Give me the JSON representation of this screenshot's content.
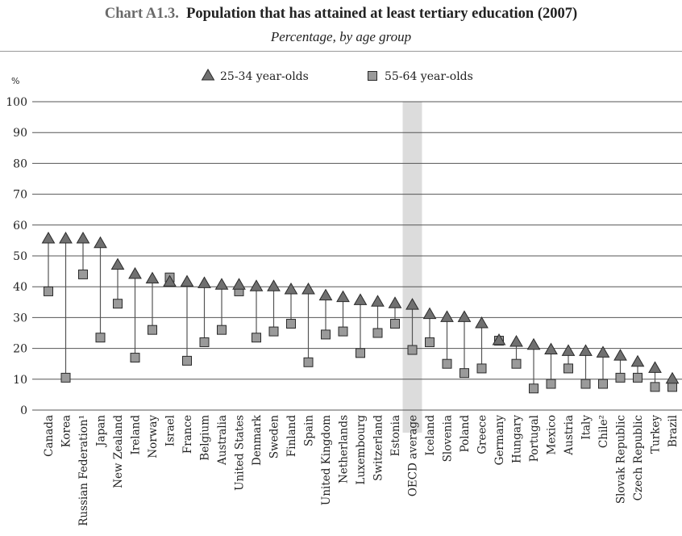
{
  "header": {
    "title_lead": "Chart A1.3.",
    "title_main": "Population that has attained at least tertiary education (2007)",
    "subtitle": "Percentage, by age group"
  },
  "legend": {
    "placement": "top",
    "items": [
      {
        "label": "25-34 year-olds",
        "marker": "triangle-icon"
      },
      {
        "label": "55-64 year-olds",
        "marker": "square-icon"
      }
    ]
  },
  "colors": {
    "marker_fill_triangle": "#707070",
    "marker_fill_square": "#9a9a9a",
    "marker_stroke": "#2a2a2a",
    "connector": "#555555",
    "grid": "#555555",
    "highlight_band": "#dcdcdc",
    "text": "#222222"
  },
  "chart_data": {
    "type": "scatter",
    "ylabel": "%",
    "ylim": [
      0,
      100
    ],
    "yticks": [
      0,
      10,
      20,
      30,
      40,
      50,
      60,
      70,
      80,
      90,
      100
    ],
    "grid": true,
    "highlight_category": "OECD average",
    "categories": [
      "Canada",
      "Korea",
      "Russian Federation¹",
      "Japan",
      "New Zealand",
      "Ireland",
      "Norway",
      "Israel",
      "France",
      "Belgium",
      "Australia",
      "United States",
      "Denmark",
      "Sweden",
      "Finland",
      "Spain",
      "United Kingdom",
      "Netherlands",
      "Luxembourg",
      "Switzerland",
      "Estonia",
      "OECD average",
      "Iceland",
      "Slovenia",
      "Poland",
      "Greece",
      "Germany",
      "Hungary",
      "Portugal",
      "Mexico",
      "Austria",
      "Italy",
      "Chile²",
      "Slovak Republic",
      "Czech Republic",
      "Turkey",
      "Brazil"
    ],
    "series": [
      {
        "name": "25-34 year-olds",
        "marker": "triangle",
        "values": [
          55.5,
          55.5,
          55.5,
          54,
          47,
          44,
          42.5,
          41.5,
          41.5,
          41,
          40.5,
          40.5,
          40,
          40,
          39,
          39,
          37,
          36.5,
          35.5,
          35,
          34.5,
          34,
          31,
          30,
          30,
          28,
          22.5,
          22,
          21,
          19.5,
          19,
          19,
          18.5,
          17.5,
          15.5,
          13.5,
          10
        ]
      },
      {
        "name": "55-64 year-olds",
        "marker": "square",
        "values": [
          38.5,
          10.5,
          44,
          23.5,
          34.5,
          17,
          26,
          43,
          16,
          22,
          26,
          38.5,
          23.5,
          25.5,
          28,
          15.5,
          24.5,
          25.5,
          18.5,
          25,
          28,
          19.5,
          22,
          15,
          12,
          13.5,
          22.5,
          15,
          7,
          8.5,
          13.5,
          8.5,
          8.5,
          10.5,
          10.5,
          7.5,
          7.5
        ]
      }
    ]
  }
}
